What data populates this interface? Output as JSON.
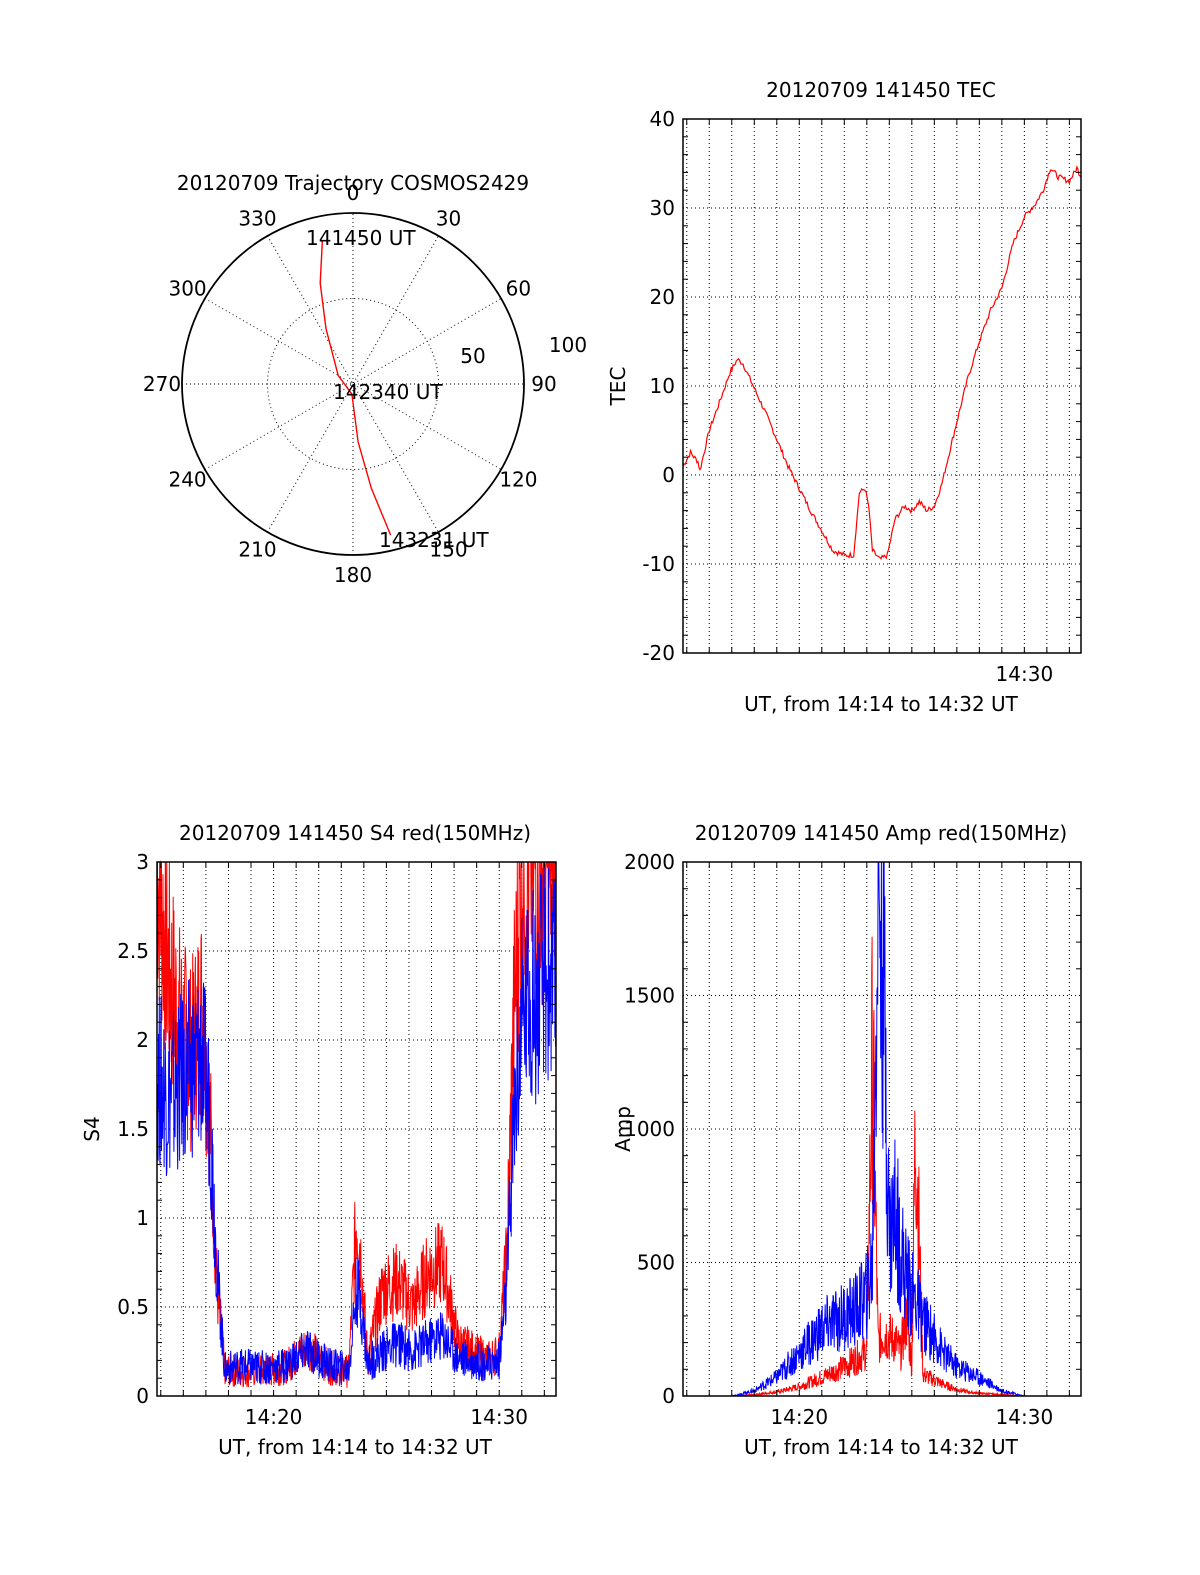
{
  "chart_data": [
    {
      "id": "polar",
      "type": "polar",
      "title": "20120709 Trajectory COSMOS2429",
      "angle_ticks": [
        "0",
        "30",
        "60",
        "90",
        "120",
        "150",
        "180",
        "210",
        "240",
        "270",
        "300",
        "330"
      ],
      "radial_ticks": [
        "50",
        "100"
      ],
      "rlim": [
        0,
        100
      ],
      "grid": true,
      "series": [
        {
          "color": "#ff0000",
          "points": [
            {
              "az": 348,
              "r": 86
            },
            {
              "az": 342,
              "r": 62
            },
            {
              "az": 334,
              "r": 36
            },
            {
              "az": 300,
              "r": 10
            },
            {
              "az": 186,
              "r": 6
            },
            {
              "az": 175,
              "r": 34
            },
            {
              "az": 170,
              "r": 62
            },
            {
              "az": 166,
              "r": 91
            }
          ]
        }
      ],
      "annotations": [
        {
          "text": "141450 UT",
          "az": 345,
          "r": 88
        },
        {
          "text": "142340 UT",
          "az": 90,
          "r": 0
        },
        {
          "text": "143231 UT",
          "az": 166,
          "r": 94
        }
      ]
    },
    {
      "id": "tec",
      "type": "line",
      "title": "20120709 141450 TEC",
      "xlabel": "UT, from 14:14 to 14:32 UT",
      "ylabel": "TEC",
      "xlim": [
        "14:14:50",
        "14:32:31"
      ],
      "ylim": [
        -20,
        40
      ],
      "yticks": [
        "40",
        "30",
        "20",
        "10",
        "0",
        "-10",
        "-20"
      ],
      "xticks": [
        {
          "t": "14:30",
          "label": "14:30"
        }
      ],
      "grid": true,
      "series": [
        {
          "color": "#ff0000",
          "x": [
            "14:14:50",
            "14:15:10",
            "14:15:30",
            "14:15:35",
            "14:16:00",
            "14:16:30",
            "14:16:55",
            "14:17:15",
            "14:17:30",
            "14:18:30",
            "14:19:30",
            "14:20:30",
            "14:21:30",
            "14:22:00",
            "14:22:25",
            "14:22:40",
            "14:22:55",
            "14:23:05",
            "14:23:15",
            "14:23:35",
            "14:23:55",
            "14:24:15",
            "14:24:40",
            "14:25:00",
            "14:25:20",
            "14:25:40",
            "14:26:00",
            "14:26:20",
            "14:26:40",
            "14:27:00",
            "14:27:30",
            "14:28:00",
            "14:28:30",
            "14:29:00",
            "14:29:30",
            "14:30:00",
            "14:30:30",
            "14:30:50",
            "14:31:10",
            "14:31:30",
            "14:32:00",
            "14:32:20",
            "14:32:31"
          ],
          "y": [
            1.0,
            2.5,
            1.5,
            0.5,
            5.0,
            8.5,
            11.5,
            13.0,
            12.5,
            7.0,
            1.0,
            -4.0,
            -8.5,
            -9.0,
            -9.0,
            -2.0,
            -1.5,
            -3.5,
            -8.5,
            -9.5,
            -9.0,
            -5.0,
            -3.5,
            -4.0,
            -3.0,
            -4.0,
            -3.5,
            -1.0,
            2.5,
            6.0,
            11.0,
            15.0,
            18.5,
            21.0,
            26.0,
            29.0,
            30.5,
            32.0,
            34.5,
            33.5,
            33.0,
            34.5,
            33.5
          ]
        }
      ]
    },
    {
      "id": "s4",
      "type": "line",
      "title": "20120709 141450 S4 red(150MHz)",
      "xlabel": "UT, from 14:14 to 14:32 UT",
      "ylabel": "S4",
      "xlim": [
        "14:14:50",
        "14:32:31"
      ],
      "ylim": [
        0,
        3
      ],
      "yticks": [
        "3",
        "2.5",
        "2",
        "1.5",
        "1",
        "0.5",
        "0"
      ],
      "xticks": [
        {
          "t": "14:20",
          "label": "14:20"
        },
        {
          "t": "14:30",
          "label": "14:30"
        }
      ],
      "grid": true,
      "series": [
        {
          "color": "#ff0000",
          "x": [
            "14:14:50",
            "14:15:20",
            "14:15:50",
            "14:16:20",
            "14:16:50",
            "14:17:10",
            "14:17:30",
            "14:17:50",
            "14:18:30",
            "14:19:30",
            "14:20:30",
            "14:21:30",
            "14:22:30",
            "14:23:20",
            "14:23:40",
            "14:23:50",
            "14:24:10",
            "14:24:50",
            "14:25:30",
            "14:26:10",
            "14:26:50",
            "14:27:30",
            "14:28:10",
            "14:28:50",
            "14:29:30",
            "14:30:00",
            "14:30:20",
            "14:30:40",
            "14:31:00",
            "14:31:20",
            "14:31:40",
            "14:32:00",
            "14:32:31"
          ],
          "y": [
            3.0,
            2.4,
            2.1,
            1.9,
            2.2,
            1.6,
            0.6,
            0.15,
            0.14,
            0.14,
            0.16,
            0.28,
            0.16,
            0.14,
            1.0,
            0.85,
            0.2,
            0.6,
            0.65,
            0.5,
            0.7,
            0.75,
            0.3,
            0.25,
            0.2,
            0.25,
            0.8,
            2.2,
            3.0,
            3.0,
            3.0,
            3.0,
            3.0
          ]
        },
        {
          "color": "#0000ff",
          "x": [
            "14:14:50",
            "14:15:20",
            "14:15:50",
            "14:16:20",
            "14:16:50",
            "14:17:10",
            "14:17:30",
            "14:17:50",
            "14:18:30",
            "14:19:30",
            "14:20:30",
            "14:21:30",
            "14:22:30",
            "14:23:20",
            "14:23:40",
            "14:23:50",
            "14:24:10",
            "14:24:50",
            "14:25:30",
            "14:26:10",
            "14:26:50",
            "14:27:30",
            "14:28:10",
            "14:28:50",
            "14:29:30",
            "14:30:00",
            "14:30:20",
            "14:30:40",
            "14:31:00",
            "14:31:20",
            "14:31:40",
            "14:32:00",
            "14:32:31"
          ],
          "y": [
            1.8,
            1.7,
            1.75,
            1.85,
            1.9,
            1.6,
            0.7,
            0.15,
            0.17,
            0.16,
            0.17,
            0.26,
            0.17,
            0.15,
            0.6,
            0.55,
            0.18,
            0.25,
            0.3,
            0.25,
            0.3,
            0.35,
            0.22,
            0.2,
            0.18,
            0.2,
            0.6,
            1.6,
            2.1,
            2.3,
            2.2,
            2.4,
            2.3
          ]
        }
      ]
    },
    {
      "id": "amp",
      "type": "line",
      "title": "20120709 141450 Amp red(150MHz)",
      "xlabel": "UT, from 14:14 to 14:32 UT",
      "ylabel": "Amp",
      "xlim": [
        "14:14:50",
        "14:32:31"
      ],
      "ylim": [
        0,
        2000
      ],
      "yticks": [
        "2000",
        "1500",
        "1000",
        "500",
        "0"
      ],
      "xticks": [
        {
          "t": "14:20",
          "label": "14:20"
        },
        {
          "t": "14:30",
          "label": "14:30"
        }
      ],
      "grid": true,
      "series": [
        {
          "color": "#ff0000",
          "x": [
            "14:14:50",
            "14:17:00",
            "14:18:00",
            "14:19:00",
            "14:20:00",
            "14:21:00",
            "14:22:00",
            "14:22:30",
            "14:23:00",
            "14:23:15",
            "14:23:30",
            "14:23:45",
            "14:24:00",
            "14:24:15",
            "14:24:30",
            "14:24:45",
            "14:25:00",
            "14:25:10",
            "14:25:30",
            "14:26:00",
            "14:26:30",
            "14:27:00",
            "14:27:30",
            "14:28:00",
            "14:29:00",
            "14:30:00",
            "14:32:31"
          ],
          "y": [
            0,
            0,
            5,
            15,
            35,
            70,
            110,
            140,
            170,
            1300,
            200,
            240,
            220,
            210,
            160,
            300,
            120,
            1050,
            80,
            60,
            40,
            25,
            15,
            10,
            5,
            0,
            0
          ]
        },
        {
          "color": "#0000ff",
          "x": [
            "14:14:50",
            "14:17:00",
            "14:18:00",
            "14:19:00",
            "14:20:00",
            "14:21:00",
            "14:22:00",
            "14:22:30",
            "14:23:00",
            "14:23:15",
            "14:23:30",
            "14:23:45",
            "14:24:00",
            "14:24:15",
            "14:24:30",
            "14:24:45",
            "14:25:00",
            "14:25:10",
            "14:25:30",
            "14:26:00",
            "14:26:30",
            "14:27:00",
            "14:27:30",
            "14:28:00",
            "14:29:00",
            "14:30:00",
            "14:32:31"
          ],
          "y": [
            0,
            0,
            20,
            70,
            160,
            250,
            300,
            320,
            380,
            500,
            2000,
            1600,
            600,
            700,
            550,
            450,
            380,
            360,
            280,
            220,
            150,
            110,
            90,
            70,
            20,
            0,
            0
          ]
        }
      ]
    }
  ]
}
